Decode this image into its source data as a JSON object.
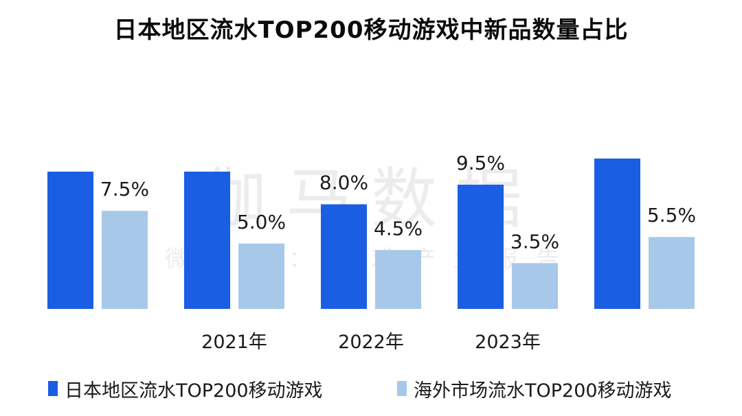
{
  "chart_data": {
    "type": "bar",
    "title": "日本地区流水TOP200移动游戏中新品数量占比",
    "categories": [
      "",
      "2021年",
      "2022年",
      "2023年",
      ""
    ],
    "series": [
      {
        "name": "日本地区流水TOP200移动游戏",
        "color": "#1a5ee3",
        "values": [
          10.5,
          10.5,
          8.0,
          9.5,
          11.5
        ],
        "labels": [
          "",
          "",
          "8.0%",
          "9.5%",
          ""
        ]
      },
      {
        "name": "海外市场流水TOP200移动游戏",
        "color": "#a8c8ea",
        "values": [
          7.5,
          5.0,
          4.5,
          3.5,
          5.5
        ],
        "labels": [
          "7.5%",
          "5.0%",
          "4.5%",
          "3.5%",
          "5.5%"
        ]
      }
    ],
    "unit": "%",
    "ylim": [
      0,
      16.8
    ],
    "grid": false,
    "legend_position": "bottom"
  },
  "watermark": {
    "main": "伽马数据",
    "sub": "微信号：游戏产业报告"
  }
}
